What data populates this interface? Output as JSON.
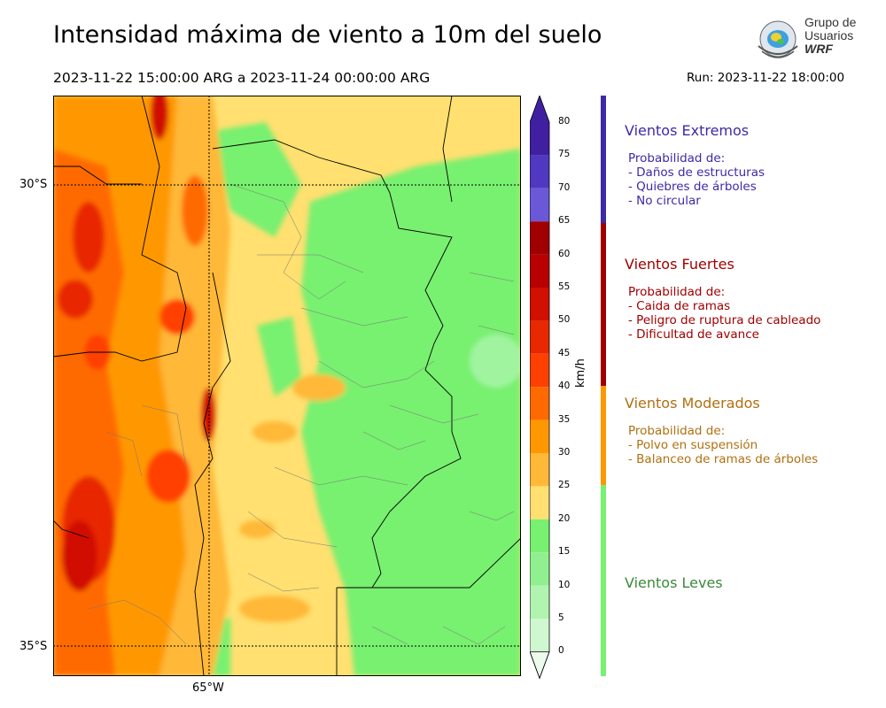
{
  "header": {
    "title": "Intensidad máxima de viento a 10m del suelo",
    "period": "2023-11-22 15:00:00 ARG  a  2023-11-24 00:00:00 ARG",
    "run": "Run: 2023-11-22 18:00:00"
  },
  "logo": {
    "line1": "Grupo de",
    "line2": "Usuarios",
    "line3": "WRF"
  },
  "map": {
    "lat_labels": [
      "30°S",
      "35°S"
    ],
    "lon_labels": [
      "65°W"
    ]
  },
  "colorbar": {
    "units": "km/h",
    "ticks": [
      "80",
      "75",
      "70",
      "65",
      "60",
      "55",
      "50",
      "45",
      "40",
      "35",
      "30",
      "25",
      "20",
      "15",
      "10",
      "5",
      "0"
    ],
    "colors": [
      "#4020a0",
      "#5038c0",
      "#6a58d8",
      "#a00000",
      "#b80000",
      "#d01000",
      "#e82800",
      "#ff4000",
      "#ff6a00",
      "#ff9800",
      "#ffb838",
      "#ffe070",
      "#78f070",
      "#90f090",
      "#b0f4b0",
      "#d0f8d0",
      "#ecfcec"
    ]
  },
  "categories": [
    {
      "title": "Vientos Extremos",
      "color": "#3d2aa8",
      "lines": [
        "Probabilidad de:",
        "- Daños de estructuras",
        "- Quiebres de árboles",
        "- No circular"
      ]
    },
    {
      "title": "Vientos Fuertes",
      "color": "#a00000",
      "lines": [
        "Probabilidad de:",
        "- Caida de ramas",
        "- Peligro de ruptura de cableado",
        "- Dificultad de avance"
      ]
    },
    {
      "title": "Vientos Moderados",
      "color": "#b07010",
      "lines": [
        "Probabilidad de:",
        "- Polvo en suspensión",
        "- Balanceo de ramas de árboles"
      ]
    },
    {
      "title": "Vientos Leves",
      "color": "#3a8a3a",
      "lines": []
    }
  ]
}
